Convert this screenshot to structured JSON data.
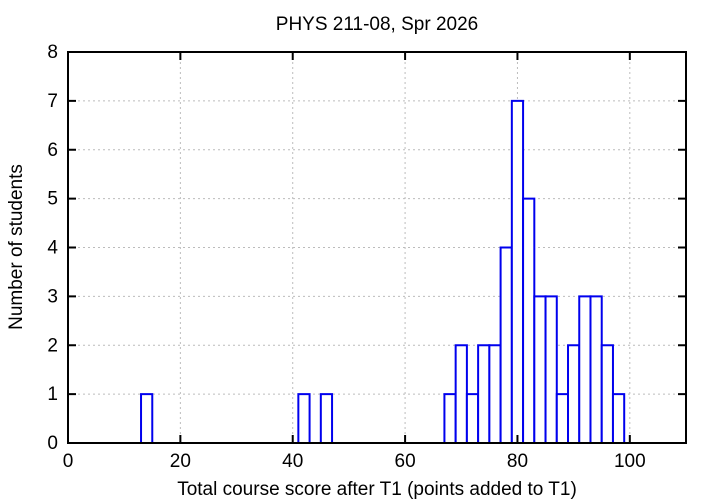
{
  "chart_data": {
    "type": "bar",
    "chart_kind": "histogram",
    "title": "PHYS 211-08, Spr 2026",
    "xlabel": "Total course score after T1 (points added to T1)",
    "ylabel": "Number of students",
    "xlim": [
      0,
      110
    ],
    "ylim": [
      0,
      8
    ],
    "xticks": [
      0,
      20,
      40,
      60,
      80,
      100
    ],
    "yticks": [
      0,
      1,
      2,
      3,
      4,
      5,
      6,
      7,
      8
    ],
    "grid": true,
    "bin_width": 2,
    "bins": [
      {
        "x0": 13,
        "x1": 15,
        "count": 1
      },
      {
        "x0": 41,
        "x1": 43,
        "count": 1
      },
      {
        "x0": 45,
        "x1": 47,
        "count": 1
      },
      {
        "x0": 67,
        "x1": 69,
        "count": 1
      },
      {
        "x0": 69,
        "x1": 71,
        "count": 2
      },
      {
        "x0": 71,
        "x1": 73,
        "count": 1
      },
      {
        "x0": 73,
        "x1": 75,
        "count": 2
      },
      {
        "x0": 75,
        "x1": 77,
        "count": 2
      },
      {
        "x0": 77,
        "x1": 79,
        "count": 4
      },
      {
        "x0": 79,
        "x1": 81,
        "count": 7
      },
      {
        "x0": 81,
        "x1": 83,
        "count": 5
      },
      {
        "x0": 83,
        "x1": 85,
        "count": 3
      },
      {
        "x0": 85,
        "x1": 87,
        "count": 3
      },
      {
        "x0": 87,
        "x1": 89,
        "count": 1
      },
      {
        "x0": 89,
        "x1": 91,
        "count": 2
      },
      {
        "x0": 91,
        "x1": 93,
        "count": 3
      },
      {
        "x0": 93,
        "x1": 95,
        "count": 3
      },
      {
        "x0": 95,
        "x1": 97,
        "count": 2
      },
      {
        "x0": 97,
        "x1": 99,
        "count": 1
      }
    ],
    "colors": {
      "bar_outline": "#0000ee",
      "bar_fill": "#ffffff",
      "grid": "#bcbcbc",
      "axis": "#000000",
      "text": "#000000",
      "background": "#ffffff"
    }
  }
}
